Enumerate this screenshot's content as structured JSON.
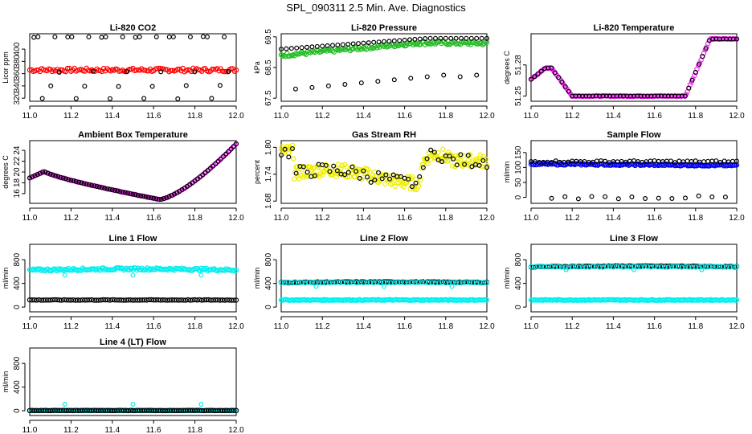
{
  "figure": {
    "title": "SPL_090311  2.5 Min. Ave. Diagnostics",
    "colors": {
      "axis": "#000000",
      "black_points": "#000000"
    }
  },
  "chart_data": [
    {
      "type": "scatter",
      "title": "Li-820 CO2",
      "ylabel": "Licor ppm",
      "xlim": [
        11.0,
        12.0
      ],
      "ylim": [
        315,
        425
      ],
      "x_ticks": [
        "11.0",
        "11.2",
        "11.4",
        "11.6",
        "11.8",
        "12.0"
      ],
      "y_ticks": [
        "320",
        "340",
        "360",
        "380",
        "400"
      ],
      "series": [
        {
          "color": "#ff0000",
          "band": [
            363,
            369
          ]
        },
        {
          "color": "#000000",
          "levels": [
            420,
            363,
            340,
            320
          ]
        }
      ]
    },
    {
      "type": "scatter",
      "title": "Li-820 Pressure",
      "ylabel": "kPa",
      "xlim": [
        11.0,
        12.0
      ],
      "ylim": [
        67.4,
        69.6
      ],
      "x_ticks": [
        "11.0",
        "11.2",
        "11.4",
        "11.6",
        "11.8",
        "12.0"
      ],
      "y_ticks": [
        "67.5",
        "68.5",
        "69.5"
      ],
      "series": [
        {
          "color": "#22bb22",
          "start": 68.9,
          "end": 69.3
        },
        {
          "color": "#000000",
          "start": 69.1,
          "end": 69.45,
          "low": 67.8
        }
      ]
    },
    {
      "type": "scatter",
      "title": "Li-820 Temperature",
      "ylabel": "degrees C",
      "xlim": [
        11.0,
        12.0
      ],
      "ylim": [
        51.245,
        51.31
      ],
      "x_ticks": [
        "11.0",
        "11.2",
        "11.4",
        "11.6",
        "11.8",
        "12.0"
      ],
      "y_ticks": [
        "51.25",
        "51.28"
      ],
      "series": [
        {
          "color": "#ff22ff",
          "low": 51.25,
          "high": 51.305,
          "hump": 51.277
        }
      ]
    },
    {
      "type": "scatter",
      "title": "Ambient Box Temperature",
      "ylabel": "degrees C",
      "xlim": [
        11.0,
        12.0
      ],
      "ylim": [
        14.2,
        25.8
      ],
      "x_ticks": [
        "11.0",
        "11.2",
        "11.4",
        "11.6",
        "11.8",
        "12.0"
      ],
      "y_ticks": [
        "16",
        "18",
        "20",
        "22",
        "24"
      ],
      "series": [
        {
          "color": "#ff22ff",
          "start": 18.9,
          "peak": 20.1,
          "min": 14.9,
          "end": 25.2
        }
      ]
    },
    {
      "type": "scatter",
      "title": "Gas Stream RH",
      "ylabel": "percent",
      "xlim": [
        11.0,
        12.0
      ],
      "ylim": [
        1.675,
        1.815
      ],
      "x_ticks": [
        "11.0",
        "11.2",
        "11.4",
        "11.6",
        "11.8",
        "12.0"
      ],
      "y_ticks": [
        "1.68",
        "1.74",
        "1.80"
      ],
      "series": [
        {
          "color": "#eeee00",
          "range": [
            1.69,
            1.805
          ]
        }
      ]
    },
    {
      "type": "scatter",
      "title": "Sample Flow",
      "ylabel": "ml/min",
      "xlim": [
        11.0,
        12.0
      ],
      "ylim": [
        -20,
        190
      ],
      "x_ticks": [
        "11.0",
        "11.2",
        "11.4",
        "11.6",
        "11.8",
        "12.0"
      ],
      "y_ticks": [
        "0",
        "50",
        "100",
        "150"
      ],
      "series": [
        {
          "color": "#0000ee",
          "start": 112,
          "end": 107
        },
        {
          "color": "#000000",
          "levels": [
            120,
            0
          ]
        }
      ]
    },
    {
      "type": "scatter",
      "title": "Line 1 Flow",
      "ylabel": "ml/min",
      "xlim": [
        11.0,
        12.0
      ],
      "ylim": [
        -80,
        1060
      ],
      "x_ticks": [
        "11.0",
        "11.2",
        "11.4",
        "11.6",
        "11.8",
        "12.0"
      ],
      "y_ticks": [
        "0",
        "400",
        "800"
      ],
      "series": [
        {
          "color": "#00eeee",
          "level": 625
        },
        {
          "color": "#000000",
          "level": 120
        }
      ]
    },
    {
      "type": "scatter",
      "title": "Line 2 Flow",
      "ylabel": "ml/min",
      "xlim": [
        11.0,
        12.0
      ],
      "ylim": [
        -80,
        1060
      ],
      "x_ticks": [
        "11.0",
        "11.2",
        "11.4",
        "11.6",
        "11.8",
        "12.0"
      ],
      "y_ticks": [
        "0",
        "400",
        "800"
      ],
      "series": [
        {
          "color": "#00eeee",
          "level": 120
        },
        {
          "color": "#000000",
          "level": 415
        }
      ]
    },
    {
      "type": "scatter",
      "title": "Line 3 Flow",
      "ylabel": "ml/min",
      "xlim": [
        11.0,
        12.0
      ],
      "ylim": [
        -80,
        1060
      ],
      "x_ticks": [
        "11.0",
        "11.2",
        "11.4",
        "11.6",
        "11.8",
        "12.0"
      ],
      "y_ticks": [
        "0",
        "400",
        "800"
      ],
      "series": [
        {
          "color": "#00eeee",
          "level": 120
        },
        {
          "color": "#000000",
          "level": 680
        }
      ]
    },
    {
      "type": "scatter",
      "title": "Line 4 (LT) Flow",
      "ylabel": "ml/min",
      "xlim": [
        11.0,
        12.0
      ],
      "ylim": [
        -80,
        1060
      ],
      "x_ticks": [
        "11.0",
        "11.2",
        "11.4",
        "11.6",
        "11.8",
        "12.0"
      ],
      "y_ticks": [
        "0",
        "400",
        "800"
      ],
      "series": [
        {
          "color": "#00eeee",
          "level": 5,
          "spikes": 110
        },
        {
          "color": "#000000",
          "level": 5
        }
      ]
    }
  ]
}
